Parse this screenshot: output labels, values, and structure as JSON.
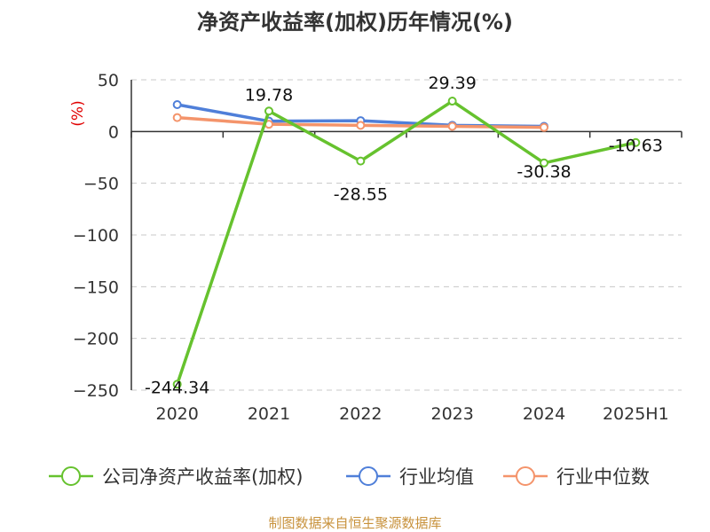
{
  "title": "净资产收益率(加权)历年情况(%)",
  "source": "制图数据来自恒生聚源数据库",
  "chart_data": {
    "type": "line",
    "categories": [
      "2020",
      "2021",
      "2022",
      "2023",
      "2024",
      "2025H1"
    ],
    "ylabel": "(%)",
    "ylim": [
      -250,
      50
    ],
    "yticks": [
      50,
      0,
      -50,
      -100,
      -150,
      -200,
      -250
    ],
    "grid": true,
    "legend_position": "bottom",
    "series": [
      {
        "name": "公司净资产收益率(加权)",
        "color": "#66c22e",
        "values": [
          -244.34,
          19.78,
          -28.55,
          29.39,
          -30.38,
          -10.63
        ],
        "labels": [
          "-244.34",
          "19.78",
          "-28.55",
          "29.39",
          "-30.38",
          "-10.63"
        ]
      },
      {
        "name": "行业均值",
        "color": "#4f7fd9",
        "values": [
          26.0,
          10.0,
          10.5,
          6.0,
          5.0,
          null
        ]
      },
      {
        "name": "行业中位数",
        "color": "#f4946b",
        "values": [
          13.5,
          7.0,
          6.0,
          5.0,
          4.0,
          null
        ]
      }
    ]
  }
}
